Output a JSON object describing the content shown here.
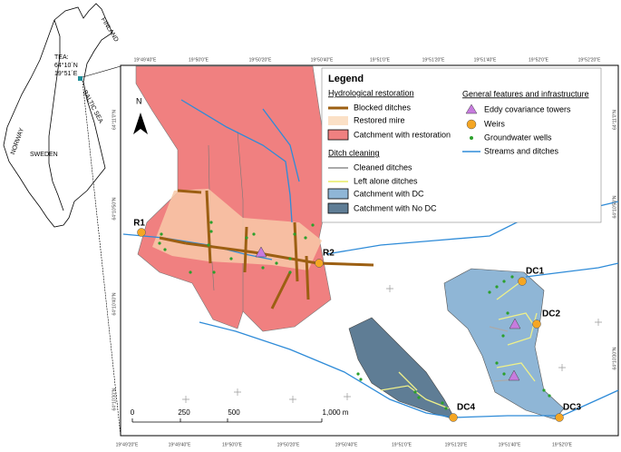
{
  "inset": {
    "finland": "FINLAND",
    "norway": "NORWAY",
    "sweden": "SWEDEN",
    "sea": "BALTIC SEA",
    "site_label": "TEA:",
    "site_lat": "64°10´N",
    "site_lon": "19°51´E"
  },
  "map": {
    "top_coords": [
      "19°49'40\"E",
      "19°50'0\"E",
      "19°50'20\"E",
      "19°50'40\"E",
      "19°51'0\"E",
      "19°51'20\"E",
      "19°51'40\"E",
      "19°52'0\"E",
      "19°52'20\"E"
    ],
    "bottom_coords": [
      "19°49'20\"E",
      "19°49'40\"E",
      "19°50'0\"E",
      "19°50'20\"E",
      "19°50'40\"E",
      "19°51'0\"E",
      "19°51'20\"E",
      "19°51'40\"E",
      "19°52'0\"E"
    ],
    "left_coords": [
      "64°11'0\"N",
      "64°10'50\"N",
      "64°10'40\"N",
      "64°10'30\"N"
    ],
    "right_coords": [
      "64°11'0\"N",
      "64°10'50\"N",
      "64°10'30\"N"
    ],
    "north": "N",
    "sites": [
      "R1",
      "R2",
      "DC1",
      "DC2",
      "DC3",
      "DC4"
    ],
    "scale": [
      "0",
      "250",
      "500",
      "1,000 m"
    ]
  },
  "legend": {
    "title": "Legend",
    "hydro": {
      "heading": "Hydrological restoration",
      "items": [
        "Blocked ditches",
        "Restored mire",
        "Catchment with restoration"
      ]
    },
    "dc": {
      "heading": "Ditch cleaning",
      "items": [
        "Cleaned ditches",
        "Left alone ditches",
        "Catchment with DC",
        "Catchment with No DC"
      ]
    },
    "general": {
      "heading": "General features and infrastructure",
      "items": [
        "Eddy covariance towers",
        "Weirs",
        "Groundwater wells",
        "Streams and ditches"
      ]
    }
  }
}
